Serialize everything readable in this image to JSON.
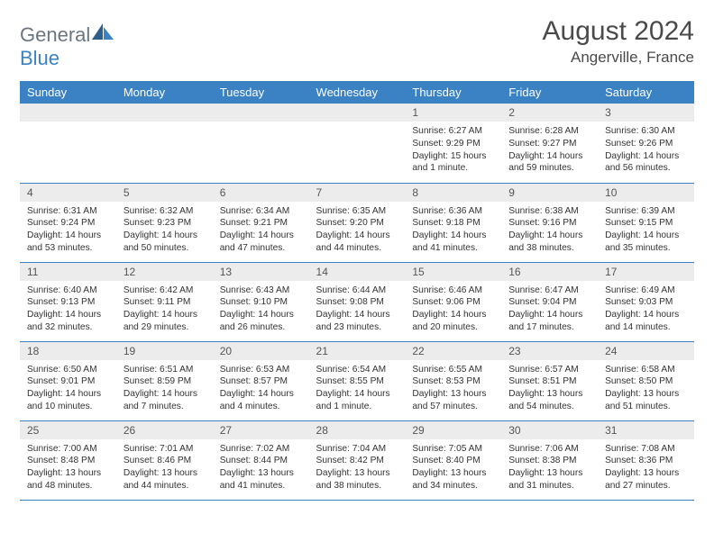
{
  "logo": {
    "general": "General",
    "blue": "Blue"
  },
  "title": "August 2024",
  "location": "Angerville, France",
  "colors": {
    "header_bg": "#3b82c4",
    "header_text": "#ffffff",
    "daynum_bg": "#ececec",
    "border": "#3b82c4",
    "text": "#333333",
    "logo_gray": "#6b7680",
    "logo_blue": "#3b82c4"
  },
  "weekdays": [
    "Sunday",
    "Monday",
    "Tuesday",
    "Wednesday",
    "Thursday",
    "Friday",
    "Saturday"
  ],
  "weeks": [
    [
      null,
      null,
      null,
      null,
      {
        "n": "1",
        "sr": "Sunrise: 6:27 AM",
        "ss": "Sunset: 9:29 PM",
        "dl": "Daylight: 15 hours and 1 minute."
      },
      {
        "n": "2",
        "sr": "Sunrise: 6:28 AM",
        "ss": "Sunset: 9:27 PM",
        "dl": "Daylight: 14 hours and 59 minutes."
      },
      {
        "n": "3",
        "sr": "Sunrise: 6:30 AM",
        "ss": "Sunset: 9:26 PM",
        "dl": "Daylight: 14 hours and 56 minutes."
      }
    ],
    [
      {
        "n": "4",
        "sr": "Sunrise: 6:31 AM",
        "ss": "Sunset: 9:24 PM",
        "dl": "Daylight: 14 hours and 53 minutes."
      },
      {
        "n": "5",
        "sr": "Sunrise: 6:32 AM",
        "ss": "Sunset: 9:23 PM",
        "dl": "Daylight: 14 hours and 50 minutes."
      },
      {
        "n": "6",
        "sr": "Sunrise: 6:34 AM",
        "ss": "Sunset: 9:21 PM",
        "dl": "Daylight: 14 hours and 47 minutes."
      },
      {
        "n": "7",
        "sr": "Sunrise: 6:35 AM",
        "ss": "Sunset: 9:20 PM",
        "dl": "Daylight: 14 hours and 44 minutes."
      },
      {
        "n": "8",
        "sr": "Sunrise: 6:36 AM",
        "ss": "Sunset: 9:18 PM",
        "dl": "Daylight: 14 hours and 41 minutes."
      },
      {
        "n": "9",
        "sr": "Sunrise: 6:38 AM",
        "ss": "Sunset: 9:16 PM",
        "dl": "Daylight: 14 hours and 38 minutes."
      },
      {
        "n": "10",
        "sr": "Sunrise: 6:39 AM",
        "ss": "Sunset: 9:15 PM",
        "dl": "Daylight: 14 hours and 35 minutes."
      }
    ],
    [
      {
        "n": "11",
        "sr": "Sunrise: 6:40 AM",
        "ss": "Sunset: 9:13 PM",
        "dl": "Daylight: 14 hours and 32 minutes."
      },
      {
        "n": "12",
        "sr": "Sunrise: 6:42 AM",
        "ss": "Sunset: 9:11 PM",
        "dl": "Daylight: 14 hours and 29 minutes."
      },
      {
        "n": "13",
        "sr": "Sunrise: 6:43 AM",
        "ss": "Sunset: 9:10 PM",
        "dl": "Daylight: 14 hours and 26 minutes."
      },
      {
        "n": "14",
        "sr": "Sunrise: 6:44 AM",
        "ss": "Sunset: 9:08 PM",
        "dl": "Daylight: 14 hours and 23 minutes."
      },
      {
        "n": "15",
        "sr": "Sunrise: 6:46 AM",
        "ss": "Sunset: 9:06 PM",
        "dl": "Daylight: 14 hours and 20 minutes."
      },
      {
        "n": "16",
        "sr": "Sunrise: 6:47 AM",
        "ss": "Sunset: 9:04 PM",
        "dl": "Daylight: 14 hours and 17 minutes."
      },
      {
        "n": "17",
        "sr": "Sunrise: 6:49 AM",
        "ss": "Sunset: 9:03 PM",
        "dl": "Daylight: 14 hours and 14 minutes."
      }
    ],
    [
      {
        "n": "18",
        "sr": "Sunrise: 6:50 AM",
        "ss": "Sunset: 9:01 PM",
        "dl": "Daylight: 14 hours and 10 minutes."
      },
      {
        "n": "19",
        "sr": "Sunrise: 6:51 AM",
        "ss": "Sunset: 8:59 PM",
        "dl": "Daylight: 14 hours and 7 minutes."
      },
      {
        "n": "20",
        "sr": "Sunrise: 6:53 AM",
        "ss": "Sunset: 8:57 PM",
        "dl": "Daylight: 14 hours and 4 minutes."
      },
      {
        "n": "21",
        "sr": "Sunrise: 6:54 AM",
        "ss": "Sunset: 8:55 PM",
        "dl": "Daylight: 14 hours and 1 minute."
      },
      {
        "n": "22",
        "sr": "Sunrise: 6:55 AM",
        "ss": "Sunset: 8:53 PM",
        "dl": "Daylight: 13 hours and 57 minutes."
      },
      {
        "n": "23",
        "sr": "Sunrise: 6:57 AM",
        "ss": "Sunset: 8:51 PM",
        "dl": "Daylight: 13 hours and 54 minutes."
      },
      {
        "n": "24",
        "sr": "Sunrise: 6:58 AM",
        "ss": "Sunset: 8:50 PM",
        "dl": "Daylight: 13 hours and 51 minutes."
      }
    ],
    [
      {
        "n": "25",
        "sr": "Sunrise: 7:00 AM",
        "ss": "Sunset: 8:48 PM",
        "dl": "Daylight: 13 hours and 48 minutes."
      },
      {
        "n": "26",
        "sr": "Sunrise: 7:01 AM",
        "ss": "Sunset: 8:46 PM",
        "dl": "Daylight: 13 hours and 44 minutes."
      },
      {
        "n": "27",
        "sr": "Sunrise: 7:02 AM",
        "ss": "Sunset: 8:44 PM",
        "dl": "Daylight: 13 hours and 41 minutes."
      },
      {
        "n": "28",
        "sr": "Sunrise: 7:04 AM",
        "ss": "Sunset: 8:42 PM",
        "dl": "Daylight: 13 hours and 38 minutes."
      },
      {
        "n": "29",
        "sr": "Sunrise: 7:05 AM",
        "ss": "Sunset: 8:40 PM",
        "dl": "Daylight: 13 hours and 34 minutes."
      },
      {
        "n": "30",
        "sr": "Sunrise: 7:06 AM",
        "ss": "Sunset: 8:38 PM",
        "dl": "Daylight: 13 hours and 31 minutes."
      },
      {
        "n": "31",
        "sr": "Sunrise: 7:08 AM",
        "ss": "Sunset: 8:36 PM",
        "dl": "Daylight: 13 hours and 27 minutes."
      }
    ]
  ]
}
